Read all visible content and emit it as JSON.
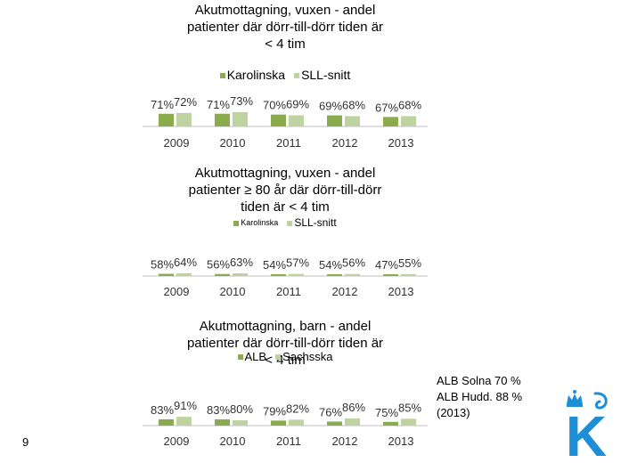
{
  "slide": {
    "page_number": "9",
    "note_lines": [
      "ALB Solna 70 %",
      "ALB Hudd. 88 %",
      "(2013)"
    ],
    "logo_letter": "K"
  },
  "colors": {
    "dark_green": "#8aac4c",
    "light_green": "#bfd3a0",
    "axis": "#bfbfbf",
    "logo_blue": "#1e8fd6"
  },
  "chart_data": [
    {
      "type": "bar",
      "title": "Akutmottagning, vuxen - andel patienter  där dörr-till-dörr tiden är < 4 tim",
      "title_lines": [
        "Akutmottagning, vuxen - andel",
        "patienter  där dörr-till-dörr tiden är",
        "< 4 tim"
      ],
      "categories": [
        "2009",
        "2010",
        "2011",
        "2012",
        "2013"
      ],
      "series": [
        {
          "name": "Karolinska",
          "values": [
            71,
            71,
            70,
            69,
            67
          ],
          "labels": [
            "71%",
            "71%",
            "70%",
            "69%",
            "67%"
          ]
        },
        {
          "name": "SLL-snitt",
          "values": [
            72,
            73,
            69,
            68,
            68
          ],
          "labels": [
            "72%",
            "73%",
            "69%",
            "68%",
            "68%"
          ]
        }
      ],
      "ylim": [
        0,
        100
      ],
      "legend_position": "top",
      "grid": false
    },
    {
      "type": "bar",
      "title": "Akutmottagning, vuxen - andel patienter ≥ 80 år där dörr-till-dörr tiden är < 4 tim",
      "title_lines": [
        "Akutmottagning, vuxen - andel",
        "patienter ≥ 80 år där dörr-till-dörr",
        "tiden är < 4 tim"
      ],
      "categories": [
        "2009",
        "2010",
        "2011",
        "2012",
        "2013"
      ],
      "series": [
        {
          "name": "Karolinska",
          "values": [
            58,
            56,
            54,
            54,
            47
          ],
          "labels": [
            "58%",
            "56%",
            "54%",
            "54%",
            "47%"
          ]
        },
        {
          "name": "SLL-snitt",
          "values": [
            64,
            63,
            57,
            56,
            55
          ],
          "labels": [
            "64%",
            "63%",
            "57%",
            "56%",
            "55%"
          ]
        }
      ],
      "ylim": [
        0,
        100
      ],
      "legend_position": "top",
      "grid": false
    },
    {
      "type": "bar",
      "title": "Akutmottagning, barn - andel patienter där dörr-till-dörr tiden är < 4 tim",
      "title_lines": [
        "Akutmottagning, barn - andel",
        "patienter där dörr-till-dörr tiden är",
        "< 4 tim"
      ],
      "categories": [
        "2009",
        "2010",
        "2011",
        "2012",
        "2013"
      ],
      "series": [
        {
          "name": "ALB",
          "values": [
            83,
            83,
            79,
            76,
            75
          ],
          "labels": [
            "83%",
            "83%",
            "79%",
            "76%",
            "75%"
          ]
        },
        {
          "name": "Sachsska",
          "values": [
            91,
            80,
            82,
            86,
            85
          ],
          "labels": [
            "91%",
            "80%",
            "82%",
            "86%",
            "85%"
          ]
        }
      ],
      "ylim": [
        0,
        100
      ],
      "legend_position": "top",
      "grid": false
    }
  ]
}
